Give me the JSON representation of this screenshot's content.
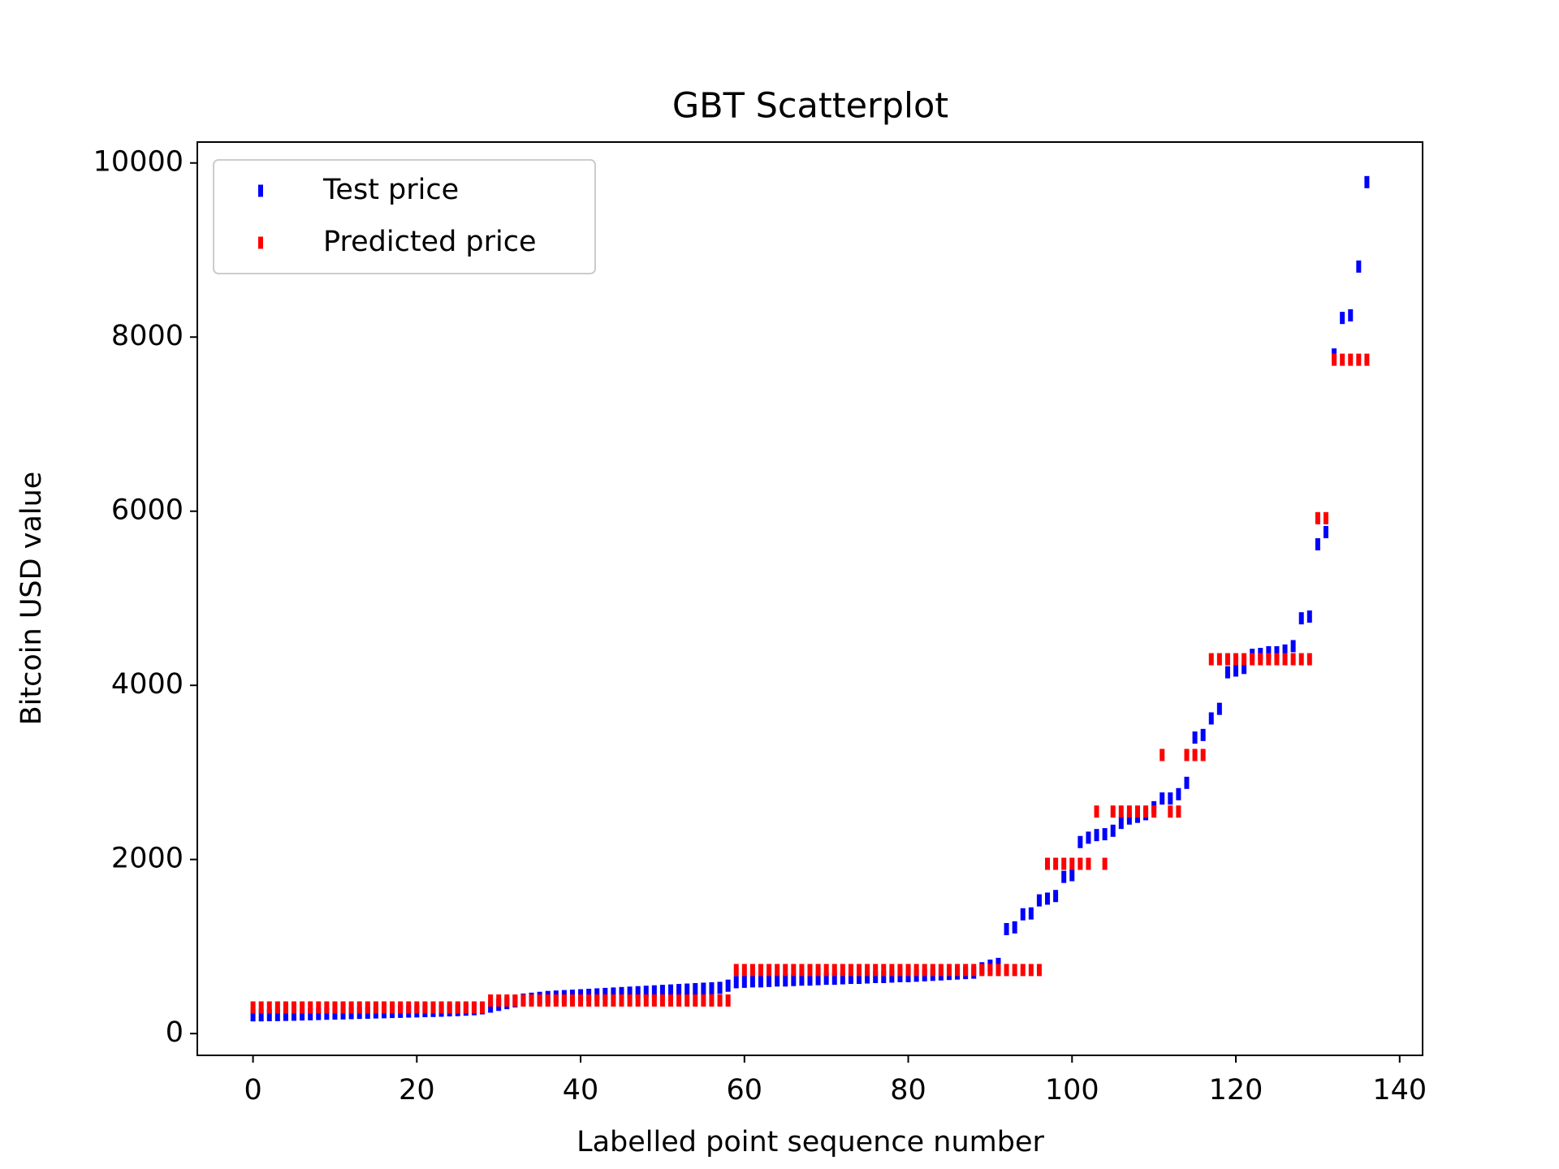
{
  "chart_data": {
    "type": "scatter",
    "title": "GBT Scatterplot",
    "x_label": "Labelled point sequence number",
    "y_label": "Bitcoin USD value",
    "x": [
      0,
      1,
      2,
      3,
      4,
      5,
      6,
      7,
      8,
      9,
      10,
      11,
      12,
      13,
      14,
      15,
      16,
      17,
      18,
      19,
      20,
      21,
      22,
      23,
      24,
      25,
      26,
      27,
      28,
      29,
      30,
      31,
      32,
      33,
      34,
      35,
      36,
      37,
      38,
      39,
      40,
      41,
      42,
      43,
      44,
      45,
      46,
      47,
      48,
      49,
      50,
      51,
      52,
      53,
      54,
      55,
      56,
      57,
      58,
      59,
      60,
      61,
      62,
      63,
      64,
      65,
      66,
      67,
      68,
      69,
      70,
      71,
      72,
      73,
      74,
      75,
      76,
      77,
      78,
      79,
      80,
      81,
      82,
      83,
      84,
      85,
      86,
      87,
      88,
      89,
      90,
      91,
      92,
      93,
      94,
      95,
      96,
      97,
      98,
      99,
      100,
      101,
      102,
      103,
      104,
      105,
      106,
      107,
      108,
      109,
      110,
      111,
      112,
      113,
      114,
      115,
      116,
      117,
      118,
      119,
      120,
      121,
      122,
      123,
      124,
      125,
      126,
      127,
      128,
      129,
      130,
      131,
      132,
      133,
      134,
      135,
      136
    ],
    "series": [
      {
        "name": "Test price",
        "color": "#0000ff",
        "values": [
          210,
          210,
          212,
          213,
          215,
          217,
          220,
          222,
          225,
          228,
          230,
          232,
          235,
          238,
          240,
          243,
          245,
          248,
          250,
          253,
          255,
          258,
          260,
          263,
          267,
          270,
          275,
          280,
          290,
          310,
          330,
          350,
          370,
          390,
          400,
          410,
          420,
          425,
          430,
          435,
          440,
          445,
          450,
          455,
          460,
          465,
          470,
          475,
          480,
          485,
          490,
          495,
          500,
          505,
          510,
          515,
          520,
          525,
          550,
          590,
          595,
          600,
          600,
          605,
          610,
          610,
          615,
          620,
          620,
          625,
          630,
          630,
          635,
          640,
          640,
          645,
          650,
          650,
          655,
          660,
          660,
          665,
          670,
          675,
          680,
          685,
          690,
          695,
          700,
          750,
          780,
          800,
          1200,
          1220,
          1370,
          1380,
          1530,
          1550,
          1580,
          1800,
          1820,
          2200,
          2250,
          2280,
          2290,
          2330,
          2420,
          2470,
          2490,
          2520,
          2600,
          2700,
          2700,
          2750,
          2880,
          3400,
          3430,
          3620,
          3730,
          4150,
          4170,
          4200,
          4350,
          4360,
          4380,
          4380,
          4400,
          4450,
          4770,
          4790,
          5620,
          5760,
          7800,
          8220,
          8250,
          8810,
          9780
        ]
      },
      {
        "name": "Predicted price",
        "color": "#ff0000",
        "values": [
          300,
          300,
          300,
          300,
          300,
          300,
          300,
          300,
          300,
          300,
          300,
          300,
          300,
          300,
          300,
          300,
          300,
          300,
          300,
          300,
          300,
          300,
          300,
          300,
          300,
          300,
          300,
          300,
          300,
          380,
          380,
          380,
          380,
          380,
          380,
          380,
          380,
          380,
          380,
          380,
          380,
          380,
          380,
          380,
          380,
          380,
          380,
          380,
          380,
          380,
          380,
          380,
          380,
          380,
          380,
          380,
          380,
          380,
          380,
          730,
          730,
          730,
          730,
          730,
          730,
          730,
          730,
          730,
          730,
          730,
          730,
          730,
          730,
          730,
          730,
          730,
          730,
          730,
          730,
          730,
          730,
          730,
          730,
          730,
          730,
          730,
          730,
          730,
          730,
          730,
          730,
          730,
          730,
          730,
          730,
          730,
          730,
          1950,
          1950,
          1950,
          1950,
          1950,
          1950,
          2550,
          1950,
          2550,
          2550,
          2550,
          2550,
          2550,
          2550,
          3200,
          2550,
          2550,
          3200,
          3200,
          3200,
          4300,
          4300,
          4300,
          4300,
          4300,
          4300,
          4300,
          4300,
          4300,
          4300,
          4300,
          4300,
          4300,
          5920,
          5920,
          7740,
          7740,
          7740,
          7740,
          7740
        ]
      }
    ],
    "xlim": [
      -6.8,
      142.8
    ],
    "xticks": [
      0,
      20,
      40,
      60,
      80,
      100,
      120,
      140
    ],
    "ylim": [
      -250,
      10240
    ],
    "yticks": [
      0,
      2000,
      4000,
      6000,
      8000,
      10000
    ],
    "grid": false,
    "legend": "upper left"
  }
}
